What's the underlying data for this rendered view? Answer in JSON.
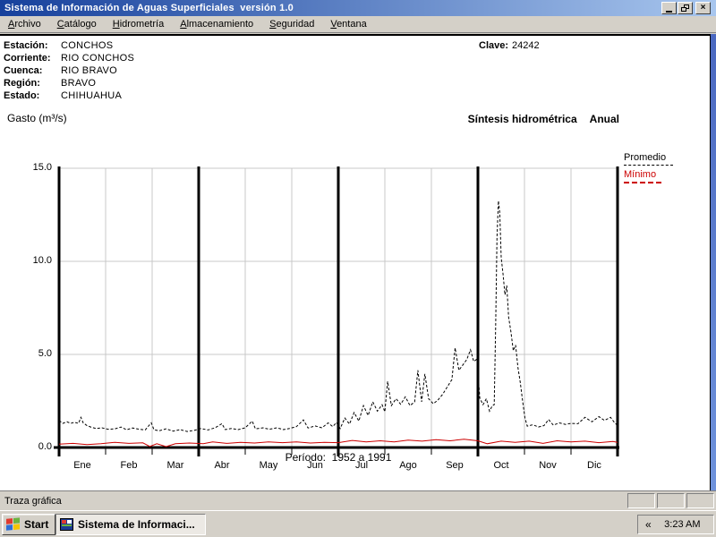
{
  "window": {
    "title": "Sistema de Información de Aguas Superficiales  versión 1.0",
    "controls": {
      "minimize": "minimize",
      "restore": "restore",
      "close": "×"
    }
  },
  "menu": {
    "items": [
      {
        "label": "Archivo",
        "accel_index": 0
      },
      {
        "label": "Catálogo",
        "accel_index": 0
      },
      {
        "label": "Hidrometría",
        "accel_index": 0
      },
      {
        "label": "Almacenamiento",
        "accel_index": 0
      },
      {
        "label": "Seguridad",
        "accel_index": 0
      },
      {
        "label": "Ventana",
        "accel_index": 0
      }
    ]
  },
  "station": {
    "fields": [
      {
        "label": "Estación:",
        "value": "CONCHOS"
      },
      {
        "label": "Corriente:",
        "value": "RIO CONCHOS"
      },
      {
        "label": "Cuenca:",
        "value": "RIO BRAVO"
      },
      {
        "label": "Región:",
        "value": "BRAVO"
      },
      {
        "label": "Estado:",
        "value": "CHIHUAHUA"
      }
    ],
    "clave_label": "Clave:",
    "clave_value": "24242"
  },
  "chart_data": {
    "type": "line",
    "title": "Síntesis hidrométrica",
    "subtitle": "Anual",
    "y_axis_label": "Gasto (m³/s)",
    "period_note": "Período:  1952 a 1991",
    "categories": [
      "Ene",
      "Feb",
      "Mar",
      "Abr",
      "May",
      "Jun",
      "Jul",
      "Ago",
      "Sep",
      "Oct",
      "Nov",
      "Dic"
    ],
    "y_ticks": [
      {
        "label": "15.0",
        "value": 15
      },
      {
        "label": "10.0",
        "value": 10
      },
      {
        "label": "5.0",
        "value": 5
      },
      {
        "label": "0.0",
        "value": 0
      }
    ],
    "ylim": [
      0,
      15
    ],
    "xlim_months": [
      0,
      12
    ],
    "grid": true,
    "quarter_lines_months": [
      0,
      3,
      6,
      9,
      12
    ],
    "legend_position": "right",
    "series": [
      {
        "name": "Promedio",
        "color": "#000000",
        "style": "dashed",
        "points": [
          [
            0,
            1.45
          ],
          [
            0.08,
            1.3
          ],
          [
            0.17,
            1.38
          ],
          [
            0.25,
            1.3
          ],
          [
            0.33,
            1.35
          ],
          [
            0.42,
            1.3
          ],
          [
            0.47,
            1.62
          ],
          [
            0.52,
            1.32
          ],
          [
            0.6,
            1.18
          ],
          [
            0.7,
            1.08
          ],
          [
            0.8,
            1.02
          ],
          [
            0.92,
            1.06
          ],
          [
            1.05,
            0.98
          ],
          [
            1.2,
            1
          ],
          [
            1.33,
            1.1
          ],
          [
            1.45,
            0.95
          ],
          [
            1.58,
            1.05
          ],
          [
            1.72,
            0.98
          ],
          [
            1.85,
            0.94
          ],
          [
            1.98,
            1.32
          ],
          [
            2.04,
            0.95
          ],
          [
            2.15,
            0.9
          ],
          [
            2.3,
            1
          ],
          [
            2.45,
            0.88
          ],
          [
            2.6,
            0.96
          ],
          [
            2.75,
            0.86
          ],
          [
            2.9,
            0.92
          ],
          [
            3.05,
            1.02
          ],
          [
            3.2,
            0.94
          ],
          [
            3.35,
            1.06
          ],
          [
            3.5,
            1.28
          ],
          [
            3.57,
            0.96
          ],
          [
            3.7,
            1.02
          ],
          [
            3.85,
            0.96
          ],
          [
            4,
            1.06
          ],
          [
            4.15,
            1.42
          ],
          [
            4.22,
            1
          ],
          [
            4.38,
            1.06
          ],
          [
            4.52,
            0.98
          ],
          [
            4.68,
            1.06
          ],
          [
            4.82,
            0.96
          ],
          [
            4.95,
            1.02
          ],
          [
            5.1,
            1.12
          ],
          [
            5.25,
            1.48
          ],
          [
            5.35,
            1.05
          ],
          [
            5.5,
            1.16
          ],
          [
            5.65,
            1.06
          ],
          [
            5.78,
            1.32
          ],
          [
            5.88,
            1.12
          ],
          [
            5.96,
            1.34
          ],
          [
            6.04,
            1.02
          ],
          [
            6.14,
            1.58
          ],
          [
            6.24,
            1.26
          ],
          [
            6.34,
            1.88
          ],
          [
            6.44,
            1.42
          ],
          [
            6.54,
            2.25
          ],
          [
            6.64,
            1.72
          ],
          [
            6.74,
            2.45
          ],
          [
            6.84,
            1.95
          ],
          [
            6.94,
            2.3
          ],
          [
            7,
            1.92
          ],
          [
            7.06,
            3.55
          ],
          [
            7.14,
            2.25
          ],
          [
            7.24,
            2.62
          ],
          [
            7.34,
            2.32
          ],
          [
            7.44,
            2.72
          ],
          [
            7.54,
            2.25
          ],
          [
            7.64,
            2.45
          ],
          [
            7.71,
            4.15
          ],
          [
            7.79,
            2.45
          ],
          [
            7.86,
            3.95
          ],
          [
            7.94,
            2.62
          ],
          [
            8.04,
            2.35
          ],
          [
            8.14,
            2.55
          ],
          [
            8.24,
            2.85
          ],
          [
            8.34,
            3.25
          ],
          [
            8.44,
            3.65
          ],
          [
            8.51,
            5.35
          ],
          [
            8.59,
            4.15
          ],
          [
            8.68,
            4.45
          ],
          [
            8.76,
            4.72
          ],
          [
            8.84,
            5.25
          ],
          [
            8.91,
            4.62
          ],
          [
            8.98,
            4.75
          ],
          [
            9.04,
            2.65
          ],
          [
            9.11,
            2.3
          ],
          [
            9.18,
            2.62
          ],
          [
            9.25,
            1.95
          ],
          [
            9.31,
            2.25
          ],
          [
            9.35,
            2.3
          ],
          [
            9.38,
            6.5
          ],
          [
            9.41,
            11.3
          ],
          [
            9.44,
            13.25
          ],
          [
            9.47,
            12.6
          ],
          [
            9.5,
            10.2
          ],
          [
            9.54,
            9.3
          ],
          [
            9.58,
            8.2
          ],
          [
            9.62,
            8.7
          ],
          [
            9.66,
            7
          ],
          [
            9.71,
            6.2
          ],
          [
            9.76,
            5.2
          ],
          [
            9.81,
            5.5
          ],
          [
            9.86,
            4.3
          ],
          [
            9.91,
            3.5
          ],
          [
            9.96,
            2.5
          ],
          [
            10.01,
            1.6
          ],
          [
            10.06,
            1.15
          ],
          [
            10.18,
            1.22
          ],
          [
            10.3,
            1.1
          ],
          [
            10.42,
            1.18
          ],
          [
            10.52,
            1.5
          ],
          [
            10.62,
            1.2
          ],
          [
            10.75,
            1.32
          ],
          [
            10.88,
            1.24
          ],
          [
            11,
            1.3
          ],
          [
            11.15,
            1.28
          ],
          [
            11.3,
            1.62
          ],
          [
            11.45,
            1.38
          ],
          [
            11.6,
            1.66
          ],
          [
            11.72,
            1.45
          ],
          [
            11.85,
            1.62
          ],
          [
            11.93,
            1.35
          ],
          [
            12,
            1.18
          ]
        ]
      },
      {
        "name": "Mínimo",
        "color": "#cc0000",
        "style": "solid",
        "points": [
          [
            0,
            0.18
          ],
          [
            0.3,
            0.22
          ],
          [
            0.6,
            0.16
          ],
          [
            0.9,
            0.2
          ],
          [
            1.2,
            0.28
          ],
          [
            1.5,
            0.22
          ],
          [
            1.8,
            0.25
          ],
          [
            1.95,
            0.06
          ],
          [
            2.1,
            0.2
          ],
          [
            2.3,
            0.05
          ],
          [
            2.5,
            0.2
          ],
          [
            2.8,
            0.24
          ],
          [
            3.1,
            0.2
          ],
          [
            3.3,
            0.3
          ],
          [
            3.6,
            0.22
          ],
          [
            3.9,
            0.28
          ],
          [
            4.2,
            0.24
          ],
          [
            4.5,
            0.3
          ],
          [
            4.8,
            0.26
          ],
          [
            5.1,
            0.3
          ],
          [
            5.4,
            0.24
          ],
          [
            5.7,
            0.28
          ],
          [
            6,
            0.26
          ],
          [
            6.3,
            0.38
          ],
          [
            6.6,
            0.3
          ],
          [
            6.9,
            0.36
          ],
          [
            7.2,
            0.3
          ],
          [
            7.5,
            0.4
          ],
          [
            7.8,
            0.34
          ],
          [
            8.1,
            0.42
          ],
          [
            8.4,
            0.36
          ],
          [
            8.7,
            0.44
          ],
          [
            9,
            0.36
          ],
          [
            9.2,
            0.2
          ],
          [
            9.5,
            0.34
          ],
          [
            9.8,
            0.28
          ],
          [
            10.1,
            0.34
          ],
          [
            10.4,
            0.22
          ],
          [
            10.7,
            0.36
          ],
          [
            11,
            0.3
          ],
          [
            11.3,
            0.34
          ],
          [
            11.6,
            0.26
          ],
          [
            11.9,
            0.32
          ],
          [
            12,
            0.28
          ]
        ]
      }
    ]
  },
  "status_bar": {
    "text": "Traza gráfica"
  },
  "taskbar": {
    "start_label": "Start",
    "task_label": "Sistema de Informaci...",
    "tray_collapse": "«",
    "clock": "3:23 AM"
  }
}
